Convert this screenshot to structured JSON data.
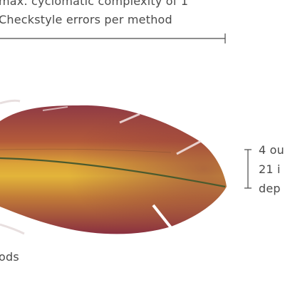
{
  "labels": {
    "top_line_1": "max. cyclomatic complexity of 1",
    "top_line_2": "Checkstyle errors per method",
    "right_line_1": "4 ou",
    "right_line_2": "21 i",
    "right_line_3": "dep",
    "bottom_label": "ods"
  },
  "colors": {
    "text": "#4a4a4a",
    "feather_dark": "#8a3440",
    "feather_mid": "#c9823a",
    "feather_light": "#e3b53a",
    "shaft": "#4a5a2e"
  },
  "graphic": "feather"
}
